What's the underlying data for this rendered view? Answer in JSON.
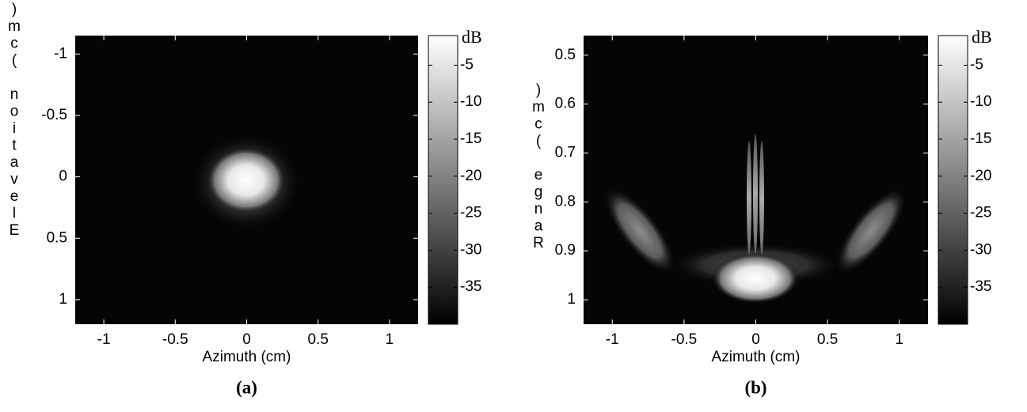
{
  "chart_data": [
    {
      "type": "heatmap",
      "title": "(a)",
      "x_label": "Azimuth (cm)",
      "y_label": "Elevation (cm)",
      "xlim": [
        -1.2,
        1.2
      ],
      "xticks": [
        -1,
        -0.5,
        0,
        0.5,
        1
      ],
      "ylim": [
        -1.15,
        1.2
      ],
      "yticks": [
        -1,
        -0.5,
        0,
        0.5,
        1
      ],
      "y_reversed": true,
      "colorbar_label": "dB",
      "clim": [
        -40,
        -1
      ],
      "cticks": [
        -5,
        -10,
        -15,
        -20,
        -25,
        -30,
        -35
      ],
      "colormap": "gray"
    },
    {
      "type": "heatmap",
      "title": "(b)",
      "x_label": "Azimuth (cm)",
      "y_label": "Range (cm)",
      "xlim": [
        -1.2,
        1.2
      ],
      "xticks": [
        -1,
        -0.5,
        0,
        0.5,
        1
      ],
      "ylim": [
        0.46,
        1.05
      ],
      "yticks": [
        0.5,
        0.6,
        0.7,
        0.8,
        0.9,
        1
      ],
      "y_reversed": true,
      "colorbar_label": "dB",
      "clim": [
        -40,
        -1
      ],
      "cticks": [
        -5,
        -10,
        -15,
        -20,
        -25,
        -30,
        -35
      ],
      "colormap": "gray"
    }
  ]
}
